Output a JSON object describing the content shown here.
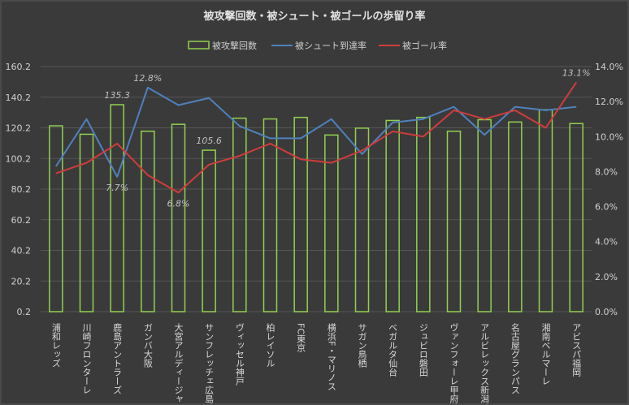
{
  "chart_data": {
    "type": "bar",
    "title": "被攻撃回数・被シュート・被ゴールの歩留り率",
    "categories": [
      "浦和レッズ",
      "川崎フロンターレ",
      "鹿島アントラーズ",
      "ガンバ大阪",
      "大宮アルディージャ",
      "サンフレッチェ広島",
      "ヴィッセル神戸",
      "柏レイソル",
      "FC東京",
      "横浜F・マリノス",
      "サガン鳥栖",
      "ベガルタ仙台",
      "ジュビロ磐田",
      "ヴァンフォーレ甲府",
      "アルビレックス新潟",
      "名古屋グランパス",
      "湘南ベルマーレ",
      "アビスパ福岡"
    ],
    "left_axis": {
      "ticks": [
        "0.2",
        "20.2",
        "40.2",
        "60.2",
        "80.2",
        "100.2",
        "120.2",
        "140.2",
        "160.2"
      ],
      "min": 0.2,
      "max": 160.2
    },
    "right_axis": {
      "ticks": [
        "0.0%",
        "2.0%",
        "4.0%",
        "6.0%",
        "8.0%",
        "10.0%",
        "12.0%",
        "14.0%"
      ],
      "min": 0,
      "max": 14
    },
    "series": [
      {
        "name": "被攻撃回数",
        "kind": "bar",
        "axis": "left",
        "color": "#92d050",
        "values": [
          121.5,
          116.0,
          135.3,
          118.0,
          122.5,
          105.6,
          126.5,
          126.0,
          127.0,
          115.5,
          120.0,
          125.0,
          127.0,
          118.0,
          125.5,
          124.0,
          132.0,
          123.0
        ]
      },
      {
        "name": "被シュート到達率",
        "kind": "line",
        "axis": "right",
        "color": "#4f81bd",
        "values": [
          8.3,
          11.0,
          7.7,
          12.8,
          11.8,
          12.2,
          10.6,
          9.9,
          9.9,
          11.0,
          9.0,
          10.8,
          11.0,
          11.7,
          10.1,
          11.7,
          11.5,
          11.7
        ]
      },
      {
        "name": "被ゴール率",
        "kind": "line",
        "axis": "right",
        "color": "#d03c3c",
        "values": [
          7.9,
          8.5,
          9.6,
          7.8,
          6.8,
          8.4,
          8.9,
          9.6,
          8.7,
          8.5,
          9.2,
          10.3,
          10.0,
          11.5,
          11.0,
          11.5,
          10.5,
          13.1
        ]
      }
    ],
    "data_labels": [
      {
        "series": 0,
        "index": 2,
        "text": "135.3"
      },
      {
        "series": 0,
        "index": 5,
        "text": "105.6"
      },
      {
        "series": 1,
        "index": 3,
        "text": "12.8%"
      },
      {
        "series": 1,
        "index": 2,
        "text": "7.7%"
      },
      {
        "series": 2,
        "index": 4,
        "text": "6.8%"
      },
      {
        "series": 2,
        "index": 17,
        "text": "13.1%"
      }
    ],
    "grid": true,
    "legend_position": "top"
  }
}
